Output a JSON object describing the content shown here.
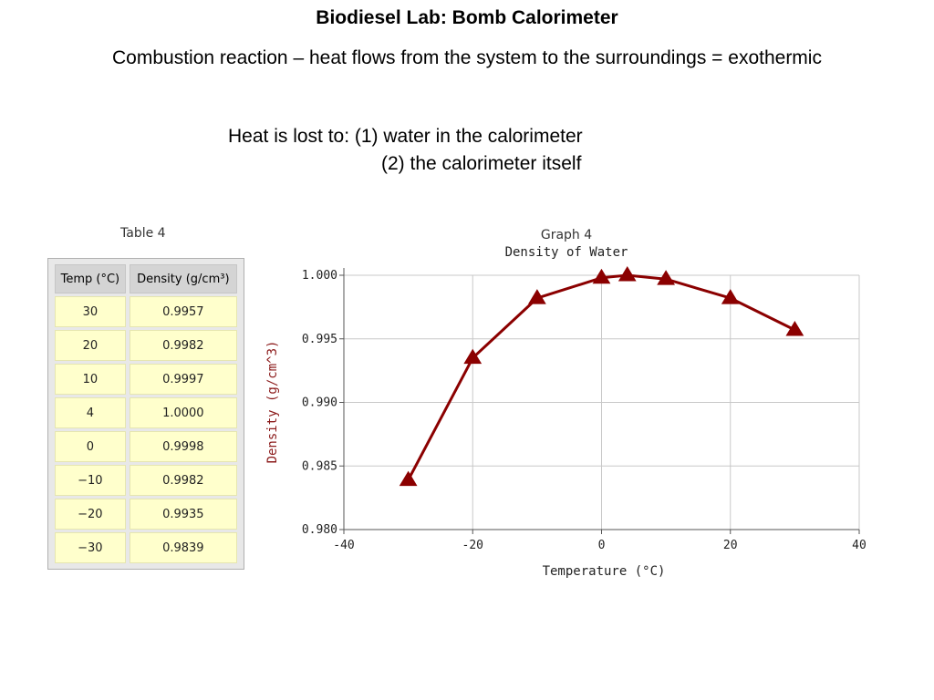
{
  "slide": {
    "title": "Biodiesel Lab:  Bomb Calorimeter",
    "subtitle": "Combustion reaction – heat flows from the system to the surroundings = exothermic",
    "heat_line1": "Heat is lost to: (1) water in the calorimeter",
    "heat_line2": "(2) the calorimeter itself"
  },
  "table": {
    "caption": "Table 4",
    "headers": [
      "Temp (°C)",
      "Density (g/cm³)"
    ],
    "rows": [
      [
        "30",
        "0.9957"
      ],
      [
        "20",
        "0.9982"
      ],
      [
        "10",
        "0.9997"
      ],
      [
        "4",
        "1.0000"
      ],
      [
        "0",
        "0.9998"
      ],
      [
        "−10",
        "0.9982"
      ],
      [
        "−20",
        "0.9935"
      ],
      [
        "−30",
        "0.9839"
      ]
    ]
  },
  "chart_data": {
    "type": "line",
    "caption": "Graph 4",
    "title": "Density of Water",
    "xlabel": "Temperature (°C)",
    "ylabel": "Density  (g/cm^3)",
    "xlim": [
      -40,
      40
    ],
    "ylim": [
      0.98,
      1.0
    ],
    "xticks": [
      -40,
      -20,
      0,
      20,
      40
    ],
    "xtick_labels": [
      "-40",
      "-20",
      "0",
      "20",
      "40"
    ],
    "yticks": [
      0.98,
      0.985,
      0.99,
      0.995,
      1.0
    ],
    "ytick_labels": [
      "0.980",
      "0.985",
      "0.990",
      "0.995",
      "1.000"
    ],
    "grid": true,
    "marker": "triangle",
    "line_color": "#8b0000",
    "series": [
      {
        "x": [
          -30,
          -20,
          -10,
          0,
          4,
          10,
          20,
          30
        ],
        "y": [
          0.9839,
          0.9935,
          0.9982,
          0.9998,
          1.0,
          0.9997,
          0.9982,
          0.9957
        ]
      }
    ]
  }
}
